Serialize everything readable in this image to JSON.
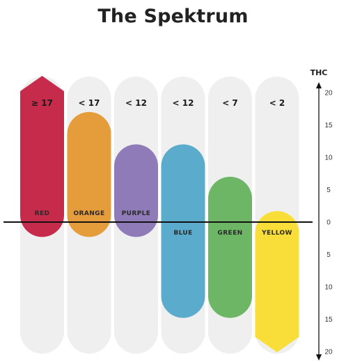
{
  "title": "The Spektrum",
  "chart_data": {
    "type": "bar",
    "title": "The Spektrum",
    "axis_label": "THC",
    "y_range": [
      -20,
      20
    ],
    "y_ticks": [
      20,
      15,
      10,
      5,
      0,
      5,
      10,
      15,
      20
    ],
    "categories": [
      "RED",
      "ORANGE",
      "PURPLE",
      "BLUE",
      "GREEN",
      "YELLOW"
    ],
    "top_labels": [
      "≥ 17",
      "< 17",
      "< 12",
      "< 12",
      "< 7",
      "< 2"
    ],
    "bars": [
      {
        "category": "RED",
        "top_label": "≥ 17",
        "high": 20,
        "low": -2.3,
        "color": "#c62b4b",
        "top_shape": "arrow",
        "bottom_shape": "round",
        "label_side": "above"
      },
      {
        "category": "ORANGE",
        "top_label": "< 17",
        "high": 17,
        "low": -2.3,
        "color": "#e59c3b",
        "top_shape": "round",
        "bottom_shape": "round",
        "label_side": "above"
      },
      {
        "category": "PURPLE",
        "top_label": "< 12",
        "high": 12,
        "low": -2.3,
        "color": "#8e7bb7",
        "top_shape": "round",
        "bottom_shape": "round",
        "label_side": "above"
      },
      {
        "category": "BLUE",
        "top_label": "< 12",
        "high": 12,
        "low": -14.8,
        "color": "#5aabcc",
        "top_shape": "round",
        "bottom_shape": "round",
        "label_side": "below"
      },
      {
        "category": "GREEN",
        "top_label": "< 7",
        "high": 7,
        "low": -14.8,
        "color": "#6cb665",
        "top_shape": "round",
        "bottom_shape": "round",
        "label_side": "below"
      },
      {
        "category": "YELLOW",
        "top_label": "< 2",
        "high": 1.7,
        "low": -20,
        "color": "#f9de3a",
        "top_shape": "round",
        "bottom_shape": "arrow",
        "label_side": "below"
      }
    ],
    "track_color": "#efefef",
    "grid": false
  }
}
